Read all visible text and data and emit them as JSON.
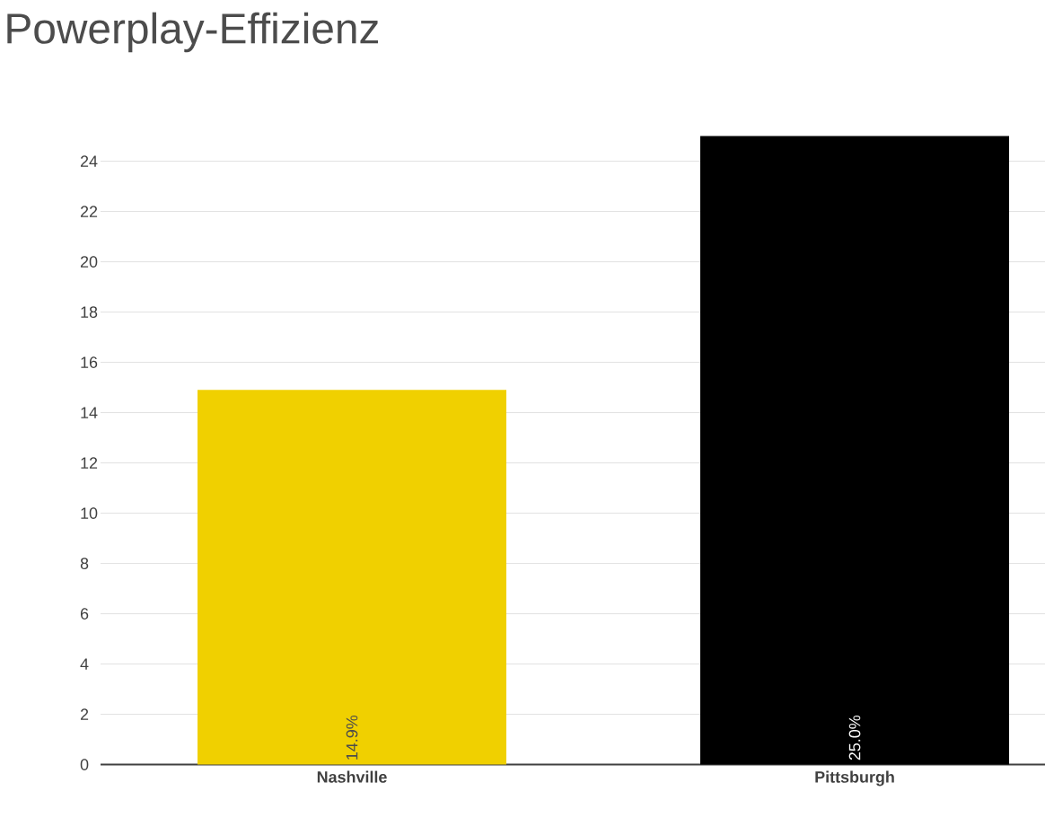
{
  "chart_data": {
    "type": "bar",
    "title": "Powerplay-Effizienz",
    "categories": [
      "Nashville",
      "Pittsburgh"
    ],
    "values": [
      14.9,
      25.0
    ],
    "colors": [
      "#f0d000",
      "#000000"
    ],
    "value_labels": [
      "14.9%",
      "25.0%"
    ],
    "ylim": [
      0,
      25
    ],
    "yticks": [
      0,
      2,
      4,
      6,
      8,
      10,
      12,
      14,
      16,
      18,
      20,
      22,
      24
    ],
    "grid": "y"
  }
}
